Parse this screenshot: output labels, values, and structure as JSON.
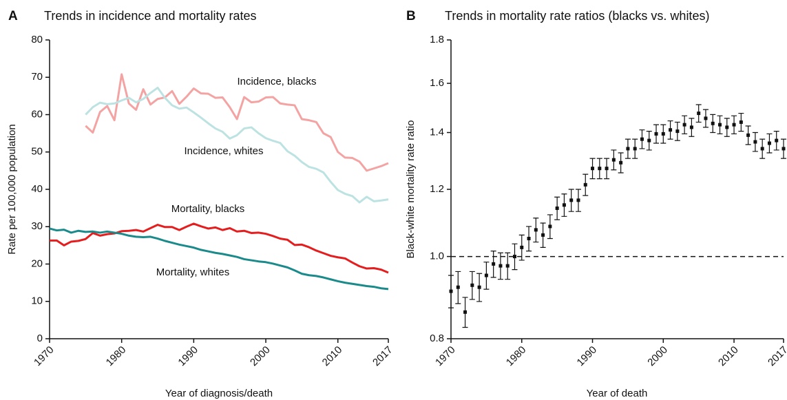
{
  "chart_data": [
    {
      "type": "line",
      "panel_label": "A",
      "title": "Trends in incidence and mortality rates",
      "x_label": "Year of diagnosis/death",
      "y_label": "Rate per 100,000 population",
      "x": [
        1970,
        1971,
        1972,
        1973,
        1974,
        1975,
        1976,
        1977,
        1978,
        1979,
        1980,
        1981,
        1982,
        1983,
        1984,
        1985,
        1986,
        1987,
        1988,
        1989,
        1990,
        1991,
        1992,
        1993,
        1994,
        1995,
        1996,
        1997,
        1998,
        1999,
        2000,
        2001,
        2002,
        2003,
        2004,
        2005,
        2006,
        2007,
        2008,
        2009,
        2010,
        2011,
        2012,
        2013,
        2014,
        2015,
        2016,
        2017
      ],
      "xlim": [
        1970,
        2017
      ],
      "xticks": [
        1970,
        1980,
        1990,
        2000,
        2010,
        2017
      ],
      "ylim": [
        0,
        80
      ],
      "yticks": [
        0,
        10,
        20,
        30,
        40,
        50,
        60,
        70,
        80
      ],
      "series": [
        {
          "name": "Incidence, blacks",
          "color": "#f4a3a3",
          "values": [
            null,
            null,
            null,
            null,
            null,
            57,
            55.2,
            60.7,
            62.3,
            58.5,
            70.8,
            63,
            61.3,
            66.8,
            62.7,
            64.2,
            64.6,
            66.3,
            62.9,
            64.8,
            67,
            65.7,
            65.6,
            64.5,
            64.6,
            62,
            58.8,
            64.7,
            63.3,
            63.5,
            64.6,
            64.7,
            63,
            62.7,
            62.5,
            58.8,
            58.5,
            58,
            55,
            54,
            50,
            48.5,
            48.4,
            47.4,
            45,
            45.6,
            46.2,
            47
          ]
        },
        {
          "name": "Incidence, whites",
          "color": "#bde2e2",
          "values": [
            null,
            null,
            null,
            null,
            null,
            60,
            62,
            63.2,
            62.8,
            63,
            63.8,
            64.5,
            63.3,
            64.2,
            65.8,
            67.2,
            64.5,
            62.5,
            61.6,
            61.9,
            60.6,
            59.2,
            57.7,
            56.3,
            55.4,
            53.6,
            54.5,
            56.3,
            56.6,
            55,
            53.7,
            53,
            52.4,
            50.2,
            49,
            47.3,
            46,
            45.5,
            44.5,
            42,
            39.8,
            38.8,
            38.2,
            36.5,
            38,
            36.8,
            37,
            37.3
          ]
        },
        {
          "name": "Mortality, blacks",
          "color": "#e41e1e",
          "values": [
            26.3,
            26.3,
            25,
            26,
            26.2,
            26.7,
            28.3,
            27.6,
            28,
            28.2,
            28.8,
            28.9,
            29.1,
            28.7,
            29.6,
            30.5,
            29.9,
            29.9,
            29.1,
            30,
            30.8,
            30.1,
            29.5,
            29.8,
            29.1,
            29.6,
            28.7,
            28.9,
            28.3,
            28.4,
            28.1,
            27.5,
            26.8,
            26.5,
            25.1,
            25.2,
            24.5,
            23.6,
            22.9,
            22.2,
            21.8,
            21.5,
            20.4,
            19.4,
            18.8,
            18.9,
            18.5,
            17.7
          ]
        },
        {
          "name": "Mortality, whites",
          "color": "#1a8a8a",
          "values": [
            29.5,
            29,
            29.2,
            28.4,
            28.9,
            28.6,
            28.7,
            28.4,
            28.7,
            28.4,
            28.1,
            27.6,
            27.3,
            27.2,
            27.3,
            26.8,
            26.2,
            25.7,
            25.2,
            24.8,
            24.4,
            23.8,
            23.4,
            23,
            22.7,
            22.3,
            21.9,
            21.3,
            21,
            20.7,
            20.5,
            20.1,
            19.6,
            19.1,
            18.3,
            17.4,
            17,
            16.8,
            16.4,
            15.9,
            15.4,
            15,
            14.7,
            14.4,
            14.1,
            13.9,
            13.5,
            13.3
          ]
        }
      ]
    },
    {
      "type": "errorbar",
      "panel_label": "B",
      "title": "Trends in mortality rate ratios (blacks vs. whites)",
      "x_label": "Year of death",
      "y_label": "Black-white mortality rate ratio",
      "x": [
        1970,
        1971,
        1972,
        1973,
        1974,
        1975,
        1976,
        1977,
        1978,
        1979,
        1980,
        1981,
        1982,
        1983,
        1984,
        1985,
        1986,
        1987,
        1988,
        1989,
        1990,
        1991,
        1992,
        1993,
        1994,
        1995,
        1996,
        1997,
        1998,
        1999,
        2000,
        2001,
        2002,
        2003,
        2004,
        2005,
        2006,
        2007,
        2008,
        2009,
        2010,
        2011,
        2012,
        2013,
        2014,
        2015,
        2016,
        2017
      ],
      "xlim": [
        1970,
        2017
      ],
      "xticks": [
        1970,
        1980,
        1990,
        2000,
        2010,
        2017
      ],
      "ylim": [
        0.8,
        1.8
      ],
      "yticks": [
        0.8,
        {
          "value": 1,
          "label": "1.0"
        },
        1.2,
        1.4,
        1.6,
        1.8
      ],
      "log_scale": true,
      "reference_line": 1,
      "color": "#111111",
      "values": [
        0.91,
        0.92,
        0.86,
        0.925,
        0.92,
        0.95,
        0.98,
        0.975,
        0.975,
        1.0,
        1.025,
        1.05,
        1.075,
        1.06,
        1.085,
        1.14,
        1.15,
        1.165,
        1.165,
        1.215,
        1.27,
        1.27,
        1.27,
        1.3,
        1.29,
        1.34,
        1.34,
        1.375,
        1.37,
        1.395,
        1.395,
        1.41,
        1.405,
        1.43,
        1.42,
        1.475,
        1.455,
        1.435,
        1.43,
        1.42,
        1.43,
        1.44,
        1.39,
        1.365,
        1.34,
        1.36,
        1.37,
        1.34
      ],
      "errors": [
        0.04,
        0.04,
        0.035,
        0.035,
        0.035,
        0.035,
        0.035,
        0.035,
        0.035,
        0.035,
        0.035,
        0.035,
        0.035,
        0.035,
        0.035,
        0.035,
        0.035,
        0.035,
        0.035,
        0.035,
        0.035,
        0.035,
        0.035,
        0.035,
        0.035,
        0.035,
        0.035,
        0.035,
        0.035,
        0.035,
        0.035,
        0.035,
        0.035,
        0.035,
        0.035,
        0.035,
        0.035,
        0.035,
        0.035,
        0.035,
        0.035,
        0.035,
        0.035,
        0.035,
        0.035,
        0.035,
        0.035,
        0.035
      ]
    }
  ]
}
